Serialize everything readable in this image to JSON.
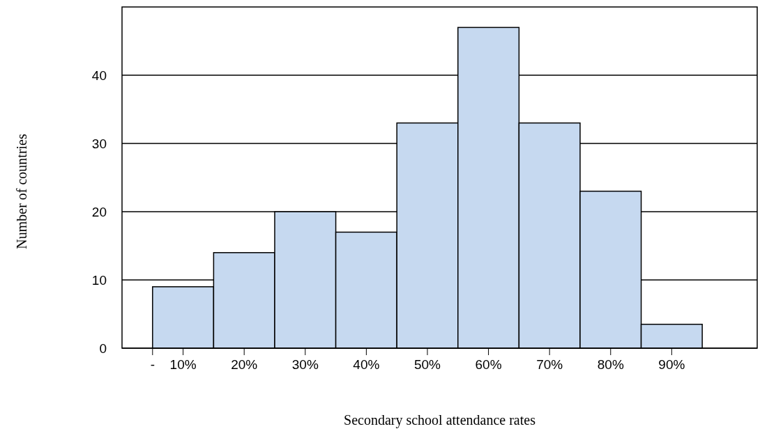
{
  "chart_data": {
    "type": "histogram",
    "xlabel": "Secondary school attendance rates",
    "ylabel": "Number of countries",
    "bins": [
      5,
      15,
      25,
      35,
      45,
      55,
      65,
      75,
      85,
      95
    ],
    "values": [
      9,
      14,
      20,
      17,
      33,
      47,
      33,
      23,
      3.5
    ],
    "color": "#c6d9f0",
    "xlim": [
      0,
      104
    ],
    "xticks": [
      {
        "value": 5,
        "label": "-"
      },
      {
        "value": 10,
        "label": "10%"
      },
      {
        "value": 20,
        "label": "20%"
      },
      {
        "value": 30,
        "label": "30%"
      },
      {
        "value": 40,
        "label": "40%"
      },
      {
        "value": 50,
        "label": "50%"
      },
      {
        "value": 60,
        "label": "60%"
      },
      {
        "value": 70,
        "label": "70%"
      },
      {
        "value": 80,
        "label": "80%"
      },
      {
        "value": 90,
        "label": "90%"
      }
    ],
    "ylim": [
      0,
      50
    ],
    "yticks": [
      0,
      10,
      20,
      30,
      40
    ],
    "grid": "y"
  }
}
